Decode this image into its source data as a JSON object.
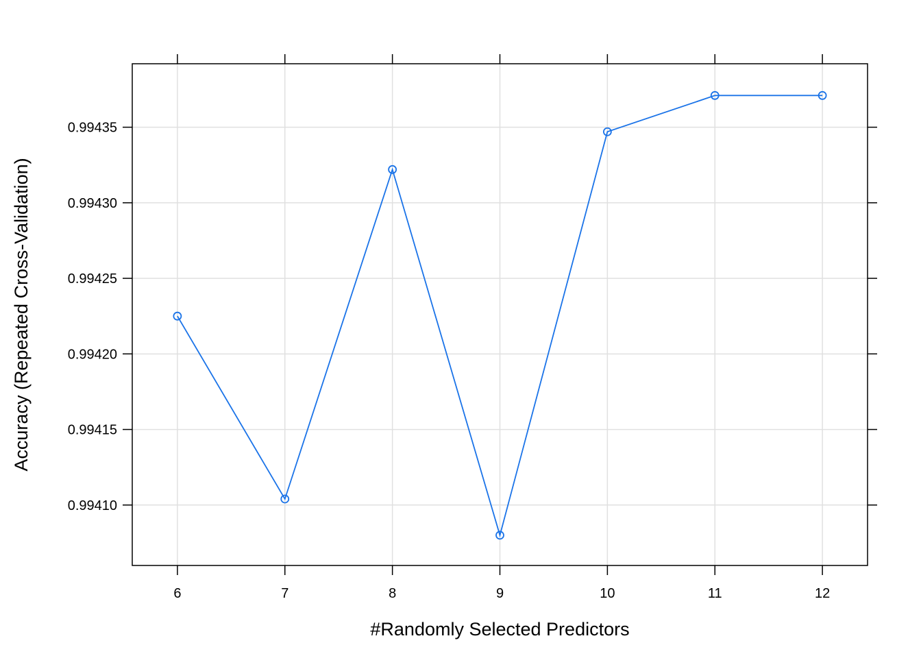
{
  "chart_data": {
    "type": "line",
    "title": "",
    "xlabel": "#Randomly Selected Predictors",
    "ylabel": "Accuracy (Repeated Cross-Validation)",
    "x": [
      6,
      7,
      8,
      9,
      10,
      11,
      12
    ],
    "series": [
      {
        "values": [
          0.994225,
          0.994104,
          0.994322,
          0.99408,
          0.994347,
          0.994371,
          0.994371
        ],
        "color": "#1a73e8"
      }
    ],
    "xticks": [
      6,
      7,
      8,
      9,
      10,
      11,
      12
    ],
    "xtick_labels": [
      "6",
      "7",
      "8",
      "9",
      "10",
      "11",
      "12"
    ],
    "yticks": [
      0.9941,
      0.99415,
      0.9942,
      0.99425,
      0.9943,
      0.99435
    ],
    "ytick_labels": [
      "0.99410",
      "0.99415",
      "0.99420",
      "0.99425",
      "0.99430",
      "0.99435"
    ],
    "xlim": [
      5.58,
      12.42
    ],
    "ylim": [
      0.99406,
      0.994392
    ],
    "grid": true,
    "grid_color": "#e0e0e0",
    "marker": "open-circle"
  }
}
